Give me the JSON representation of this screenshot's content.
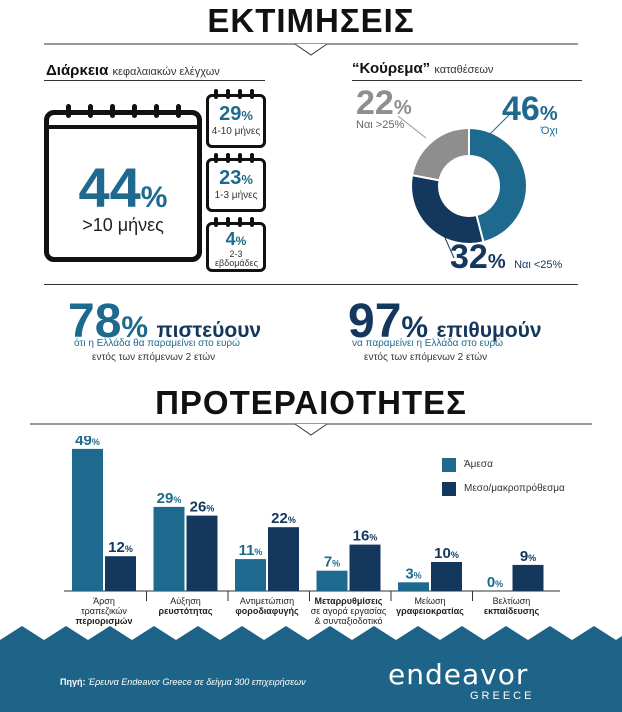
{
  "title": "ΕΚΤΙΜΗΣΕΙΣ",
  "duration": {
    "heading": "Διάρκεια",
    "heading_sub": "κεφαλαιακών ελέγχων",
    "main_value": "44",
    "main_label": ">10 μήνες",
    "items": [
      {
        "value": "29",
        "label": "4-10 μήνες"
      },
      {
        "value": "23",
        "label": "1-3 μήνες"
      },
      {
        "value": "4",
        "label": "2-3 εβδομάδες"
      }
    ]
  },
  "haircut": {
    "heading": "“Κούρεμα”",
    "heading_sub": "καταθέσεων",
    "slices": [
      {
        "value": 46,
        "label": "Όχι",
        "color": "#1e6a8e"
      },
      {
        "value": 32,
        "label": "Ναι <25%",
        "color": "#14375e"
      },
      {
        "value": 22,
        "label": "Ναι >25%",
        "color": "#8e8e8e"
      }
    ]
  },
  "stats": [
    {
      "value": "78",
      "word": "πιστεύουν",
      "line1": "ότι η Ελλάδα θα παραμείνει στο ευρώ",
      "line2": "εντός των επόμενων 2 ετών"
    },
    {
      "value": "97",
      "word": "επιθυμούν",
      "line1": "να παραμείνει η Ελλάδα στο ευρώ",
      "line2": "εντός των επόμενων 2 ετών"
    }
  ],
  "priorities_title": "ΠΡΟΤΕΡΑΙΟΤΗΤΕΣ",
  "pct_sign": "%",
  "chart_data": {
    "type": "bar",
    "categories": [
      [
        "Άρση",
        "τραπεζικών",
        "περιορισμών"
      ],
      [
        "Αύξηση",
        "ρευστότητας"
      ],
      [
        "Αντιμετώπιση",
        "φοροδιαφυγής"
      ],
      [
        "Μεταρρυθμίσεις",
        "σε αγορά εργασίας",
        "& συνταξιοδοτικό"
      ],
      [
        "Μείωση",
        "γραφειοκρατίας"
      ],
      [
        "Βελτίωση",
        "εκπαίδευσης"
      ]
    ],
    "bold_lines": [
      [
        2
      ],
      [
        1
      ],
      [
        1
      ],
      [
        0
      ],
      [
        1
      ],
      [
        1
      ]
    ],
    "series": [
      {
        "name": "Άμεσα",
        "color": "#1e6a8e",
        "values": [
          49,
          29,
          11,
          7,
          3,
          0
        ]
      },
      {
        "name": "Μεσο/μακροπρόθεσμα",
        "color": "#14375e",
        "values": [
          12,
          26,
          22,
          16,
          10,
          9
        ]
      }
    ],
    "ylim": [
      0,
      50
    ],
    "legend": "top-right"
  },
  "footer": {
    "source_label": "Πηγή:",
    "source_text": "Έρευνα Endeavor Greece σε δείγμα 300 επιχειρήσεων",
    "logo_main": "endeavor",
    "logo_sub": "GREECE"
  }
}
